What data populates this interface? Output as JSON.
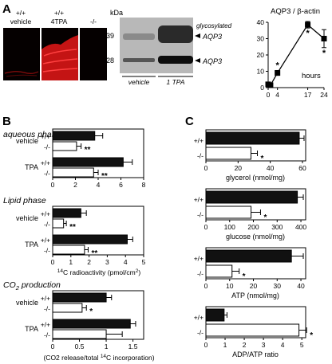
{
  "panels": {
    "A": "A",
    "B": "B",
    "C": "C"
  },
  "panel_a": {
    "micro_labels": [
      {
        "genotype": "+/+",
        "treatment": "vehicle"
      },
      {
        "genotype": "+/+",
        "treatment": "4TPA"
      },
      {
        "genotype": "-/-",
        "treatment": ""
      }
    ],
    "blot": {
      "kda_label": "kDa",
      "kda_marks": [
        "39",
        "28"
      ],
      "glyco_label_1": "glycosylated",
      "glyco_label_2": "AQP3",
      "aqp3_label": "AQP3",
      "lane_groups": [
        "vehicle",
        "1 TPA"
      ]
    }
  },
  "colors": {
    "bar_dark": "#111111",
    "bar_light": "#ffffff",
    "micro_bg": "#050000",
    "micro_red": "#d81818",
    "blot_bg": "#b8b8b8"
  },
  "chart_data": [
    {
      "id": "aqp3-timecourse",
      "type": "line",
      "title": "AQP3 / β-actin",
      "xlabel": "hours",
      "x": [
        0,
        1,
        4,
        17,
        24
      ],
      "xticks": [
        0,
        4,
        17,
        24
      ],
      "xlim": [
        0,
        24
      ],
      "yticks": [
        0,
        10,
        20,
        30,
        40
      ],
      "ylim": [
        0,
        40
      ],
      "series": [
        {
          "values": [
            2,
            1.5,
            9,
            38.5,
            30
          ],
          "errors": [
            1,
            0.5,
            1.5,
            2,
            5.5
          ],
          "sig": [
            "",
            "",
            "*",
            "*",
            "*"
          ]
        }
      ]
    },
    {
      "id": "b-aqueous",
      "type": "bar",
      "title": "aqueous phase",
      "xlabel": "",
      "xticks": [
        0,
        2,
        4,
        6,
        8
      ],
      "xlim": [
        0,
        8
      ],
      "groups": [
        {
          "label": "vehicle",
          "rows": [
            {
              "genotype": "+/+",
              "value": 3.7,
              "error": 0.7,
              "sig": ""
            },
            {
              "genotype": "-/-",
              "value": 2.1,
              "error": 0.4,
              "sig": "**"
            }
          ]
        },
        {
          "label": "TPA",
          "rows": [
            {
              "genotype": "+/+",
              "value": 6.2,
              "error": 0.8,
              "sig": ""
            },
            {
              "genotype": "-/-",
              "value": 3.6,
              "error": 0.4,
              "sig": "**"
            }
          ]
        }
      ]
    },
    {
      "id": "b-lipid",
      "type": "bar",
      "title": "Lipid phase",
      "xlabel_pre": "",
      "xlabel_sup": "14",
      "xlabel_main": "C radioactivity (pmol/cm",
      "xlabel_sup2": "2",
      "xlabel_post": ")",
      "xticks": [
        0,
        1,
        2,
        3,
        4,
        5
      ],
      "xlim": [
        0,
        5
      ],
      "groups": [
        {
          "label": "vehicle",
          "rows": [
            {
              "genotype": "+/+",
              "value": 1.55,
              "error": 0.3,
              "sig": ""
            },
            {
              "genotype": "-/-",
              "value": 0.6,
              "error": 0.15,
              "sig": "**"
            }
          ]
        },
        {
          "label": "TPA",
          "rows": [
            {
              "genotype": "+/+",
              "value": 4.1,
              "error": 0.3,
              "sig": ""
            },
            {
              "genotype": "-/-",
              "value": 1.75,
              "error": 0.2,
              "sig": "**"
            }
          ]
        }
      ]
    },
    {
      "id": "b-co2",
      "type": "bar",
      "title_main": "CO",
      "title_sub": "2",
      "title_post": " production",
      "xlabel_pre": "(CO2 release/total ",
      "xlabel_sup": "14",
      "xlabel_main": "C incorporation)",
      "xticks": [
        0,
        0.5,
        1,
        1.5
      ],
      "xlim": [
        0,
        1.7
      ],
      "groups": [
        {
          "label": "vehicle",
          "rows": [
            {
              "genotype": "+/+",
              "value": 1.0,
              "error": 0.1,
              "sig": ""
            },
            {
              "genotype": "-/-",
              "value": 0.55,
              "error": 0.08,
              "sig": "*"
            }
          ]
        },
        {
          "label": "TPA",
          "rows": [
            {
              "genotype": "+/+",
              "value": 1.45,
              "error": 0.1,
              "sig": ""
            },
            {
              "genotype": "-/-",
              "value": 1.0,
              "error": 0.3,
              "sig": ""
            }
          ]
        }
      ]
    },
    {
      "id": "c-glycerol",
      "type": "bar",
      "xlabel": "glycerol (nmol/mg)",
      "xticks": [
        0,
        20,
        40,
        60
      ],
      "xlim": [
        0,
        62
      ],
      "rows": [
        {
          "genotype": "+/+",
          "value": 58,
          "error": 3,
          "sig": ""
        },
        {
          "genotype": "-/-",
          "value": 28,
          "error": 4,
          "sig": "*"
        }
      ]
    },
    {
      "id": "c-glucose",
      "type": "bar",
      "xlabel": "glucose (nmol/mg)",
      "xticks": [
        0,
        100,
        200,
        300,
        400
      ],
      "xlim": [
        0,
        420
      ],
      "rows": [
        {
          "genotype": "+/+",
          "value": 385,
          "error": 25,
          "sig": ""
        },
        {
          "genotype": "-/-",
          "value": 190,
          "error": 40,
          "sig": "*"
        }
      ]
    },
    {
      "id": "c-atp",
      "type": "bar",
      "xlabel": "ATP (nmol/mg)",
      "xticks": [
        0,
        10,
        20,
        30,
        40
      ],
      "xlim": [
        0,
        42
      ],
      "rows": [
        {
          "genotype": "+/+",
          "value": 36,
          "error": 5,
          "sig": ""
        },
        {
          "genotype": "-/-",
          "value": 11,
          "error": 3,
          "sig": "*"
        }
      ]
    },
    {
      "id": "c-ratio",
      "type": "bar",
      "xlabel": "ADP/ATP ratio",
      "xticks": [
        0,
        1,
        2,
        3,
        4,
        5
      ],
      "xlim": [
        0,
        5.2
      ],
      "rows": [
        {
          "genotype": "+/+",
          "value": 0.95,
          "error": 0.15,
          "sig": ""
        },
        {
          "genotype": "-/-",
          "value": 4.85,
          "error": 0.4,
          "sig": "*"
        }
      ]
    }
  ]
}
